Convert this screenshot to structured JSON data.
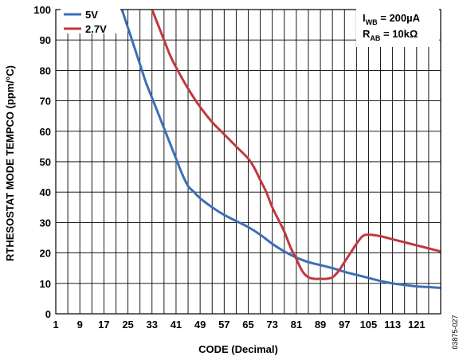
{
  "chart_data": {
    "type": "line",
    "xlabel": "CODE (Decimal)",
    "ylabel": "RTHESOSTAT MODE TEMPCO (ppm/°C)",
    "xlim": [
      1,
      129
    ],
    "ylim": [
      0,
      100
    ],
    "x_ticks": [
      "1",
      "9",
      "17",
      "25",
      "33",
      "41",
      "49",
      "57",
      "65",
      "73",
      "81",
      "89",
      "97",
      "105",
      "113",
      "121"
    ],
    "y_ticks": [
      "0",
      "10",
      "20",
      "30",
      "40",
      "50",
      "60",
      "70",
      "80",
      "90",
      "100"
    ],
    "grid": true,
    "legend_position": "top-left",
    "series": [
      {
        "name": "5V",
        "color": "#3d6fb6",
        "x": [
          23,
          25,
          27,
          29,
          31,
          33,
          35,
          37,
          39,
          41,
          43,
          45,
          47,
          49,
          53,
          57,
          61,
          65,
          69,
          73,
          77,
          81,
          85,
          89,
          93,
          97,
          101,
          105,
          109,
          113,
          117,
          121,
          125,
          129
        ],
        "y": [
          100,
          94,
          88,
          82,
          76,
          71,
          66,
          61,
          56,
          51,
          46,
          42,
          40,
          38,
          35,
          32.5,
          30.5,
          28.5,
          26,
          23,
          20.5,
          18.5,
          17,
          16,
          15,
          13.8,
          12.8,
          11.8,
          10.8,
          10,
          9.5,
          9,
          8.8,
          8.5
        ]
      },
      {
        "name": "2.7V",
        "color": "#c0393f",
        "x": [
          33,
          35,
          37,
          39,
          41,
          45,
          49,
          53,
          57,
          61,
          65,
          67,
          69,
          71,
          73,
          75,
          77,
          79,
          81,
          83,
          85,
          87,
          89,
          91,
          93,
          95,
          97,
          99,
          101,
          103,
          105,
          109,
          113,
          117,
          121,
          125,
          129
        ],
        "y": [
          100,
          95,
          90,
          85,
          81,
          74,
          68,
          63,
          59,
          55,
          51,
          48,
          44,
          40,
          35,
          31,
          27,
          22,
          18,
          14,
          12,
          11.5,
          11.5,
          11.5,
          12,
          14,
          17,
          20,
          23,
          25.5,
          26,
          25.5,
          24.5,
          23.5,
          22.5,
          21.5,
          20.5
        ]
      }
    ],
    "annotations": [
      {
        "main": "I",
        "sub": "WB",
        "rest": " = 200µA"
      },
      {
        "main": "R",
        "sub": "AB",
        "rest": " = 10kΩ"
      }
    ]
  },
  "figure_id": "03875-027"
}
